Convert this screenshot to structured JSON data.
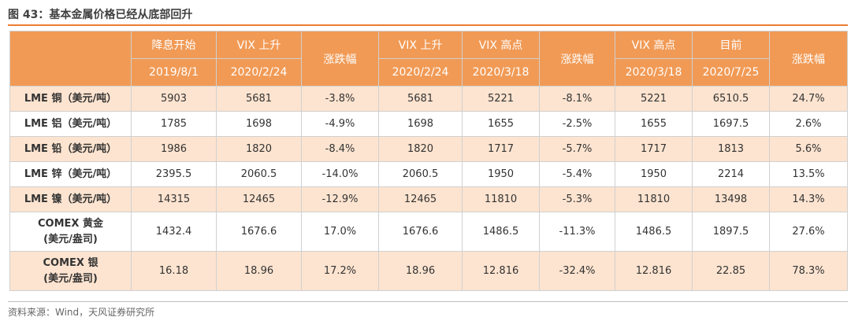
{
  "title": "图 43：基本金属价格已经从底部回升",
  "header": {
    "top": [
      "降息开始",
      "VIX 上升",
      "涨跌幅",
      "VIX 上升",
      "VIX 高点",
      "涨跌幅",
      "VIX 高点",
      "目前",
      "涨跌幅"
    ],
    "dates": [
      "2019/8/1",
      "2020/2/24",
      "2020/2/24",
      "2020/3/18",
      "2020/3/18",
      "2020/7/25"
    ]
  },
  "rows": [
    {
      "name1": "LME 铜（美元/吨）",
      "name2": "",
      "cells": [
        "5903",
        "5681",
        "-3.8%",
        "5681",
        "5221",
        "-8.1%",
        "5221",
        "6510.5",
        "24.7%"
      ]
    },
    {
      "name1": "LME 铝（美元/吨）",
      "name2": "",
      "cells": [
        "1785",
        "1698",
        "-4.9%",
        "1698",
        "1655",
        "-2.5%",
        "1655",
        "1697.5",
        "2.6%"
      ]
    },
    {
      "name1": "LME 铅（美元/吨）",
      "name2": "",
      "cells": [
        "1986",
        "1820",
        "-8.4%",
        "1820",
        "1717",
        "-5.7%",
        "1717",
        "1813",
        "5.6%"
      ]
    },
    {
      "name1": "LME 锌（美元/吨）",
      "name2": "",
      "cells": [
        "2395.5",
        "2060.5",
        "-14.0%",
        "2060.5",
        "1950",
        "-5.4%",
        "1950",
        "2214",
        "13.5%"
      ]
    },
    {
      "name1": "LME 镍（美元/吨）",
      "name2": "",
      "cells": [
        "14315",
        "12465",
        "-12.9%",
        "12465",
        "11810",
        "-5.3%",
        "11810",
        "13498",
        "14.3%"
      ]
    },
    {
      "name1": "COMEX 黄金",
      "name2": "(美元/盎司)",
      "cells": [
        "1432.4",
        "1676.6",
        "17.0%",
        "1676.6",
        "1486.5",
        "-11.3%",
        "1486.5",
        "1897.5",
        "27.6%"
      ]
    },
    {
      "name1": "COMEX 银",
      "name2": "(美元/盎司)",
      "cells": [
        "16.18",
        "18.96",
        "17.2%",
        "18.96",
        "12.816",
        "-32.4%",
        "12.816",
        "22.85",
        "78.3%"
      ]
    }
  ],
  "source": "资料来源：Wind，天风证券研究所",
  "colors": {
    "accent": "#f19a55",
    "stripe": "#fde4d0",
    "rule": "#ed7d31"
  }
}
